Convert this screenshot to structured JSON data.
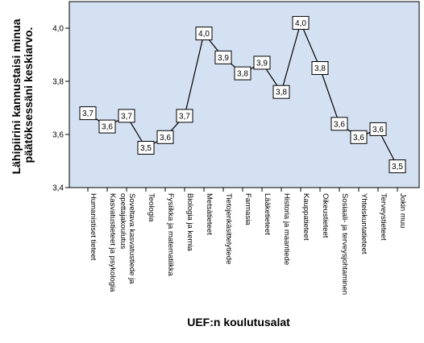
{
  "chart_data": {
    "type": "line",
    "xlabel": "UEF:n koulutusalat",
    "ylabel_lines": [
      "Lähipiirini kannustaisi minua",
      "päätöksessäni keskiarvo."
    ],
    "ylim": [
      3.4,
      4.1
    ],
    "yticks": [
      "3,4",
      "3,6",
      "3,8",
      "4,0"
    ],
    "ytick_values": [
      3.4,
      3.6,
      3.8,
      4.0
    ],
    "grid": false,
    "categories": [
      "Humanistiset tieteet",
      "Kasvatustieteet ja psykologia",
      "Soveltava kasvatustiede ja opettajakoulutus",
      "Teologia",
      "Fysiikka ja matematiikka",
      "Biologia ja kemia",
      "Metsätieteet",
      "Tietojenkäsittelytiede",
      "Farmasia",
      "Lääketieteet",
      "Historia ja maantiede",
      "Kauppatieteet",
      "Oikeustieteet",
      "Sosiaali- ja terveysjohtaminen",
      "Yhteiskuntatieteet",
      "Terveystieteet",
      "Jokin muu"
    ],
    "category_lines": [
      [
        "Humanistiset tieteet"
      ],
      [
        "Kasvatustieteet ja psykologia"
      ],
      [
        "Soveltava kasvatustiede ja",
        "opettajakoulutus"
      ],
      [
        "Teologia"
      ],
      [
        "Fysiikka ja matematiikka"
      ],
      [
        "Biologia ja kemia"
      ],
      [
        "Metsätieteet"
      ],
      [
        "Tietojenkäsittelytiede"
      ],
      [
        "Farmasia"
      ],
      [
        "Lääketieteet"
      ],
      [
        "Historia ja maantiede"
      ],
      [
        "Kauppatieteet"
      ],
      [
        "Oikeustieteet"
      ],
      [
        "Sosiaali- ja terveysjohtaminen"
      ],
      [
        "Yhteiskuntatieteet"
      ],
      [
        "Terveystieteet"
      ],
      [
        "Jokin muu"
      ]
    ],
    "values": [
      3.68,
      3.63,
      3.67,
      3.55,
      3.59,
      3.67,
      3.98,
      3.89,
      3.83,
      3.87,
      3.76,
      4.02,
      3.85,
      3.64,
      3.59,
      3.62,
      3.48
    ],
    "data_labels": [
      "3,7",
      "3,6",
      "3,7",
      "3,5",
      "3,6",
      "3,7",
      "4,0",
      "3,9",
      "3,8",
      "3,9",
      "3,8",
      "4,0",
      "3,8",
      "3,6",
      "3,6",
      "3,6",
      "3,5"
    ],
    "colors": {
      "plot_background": "#d4e1f2",
      "line": "#000000",
      "label_box": "#ffffff"
    }
  }
}
